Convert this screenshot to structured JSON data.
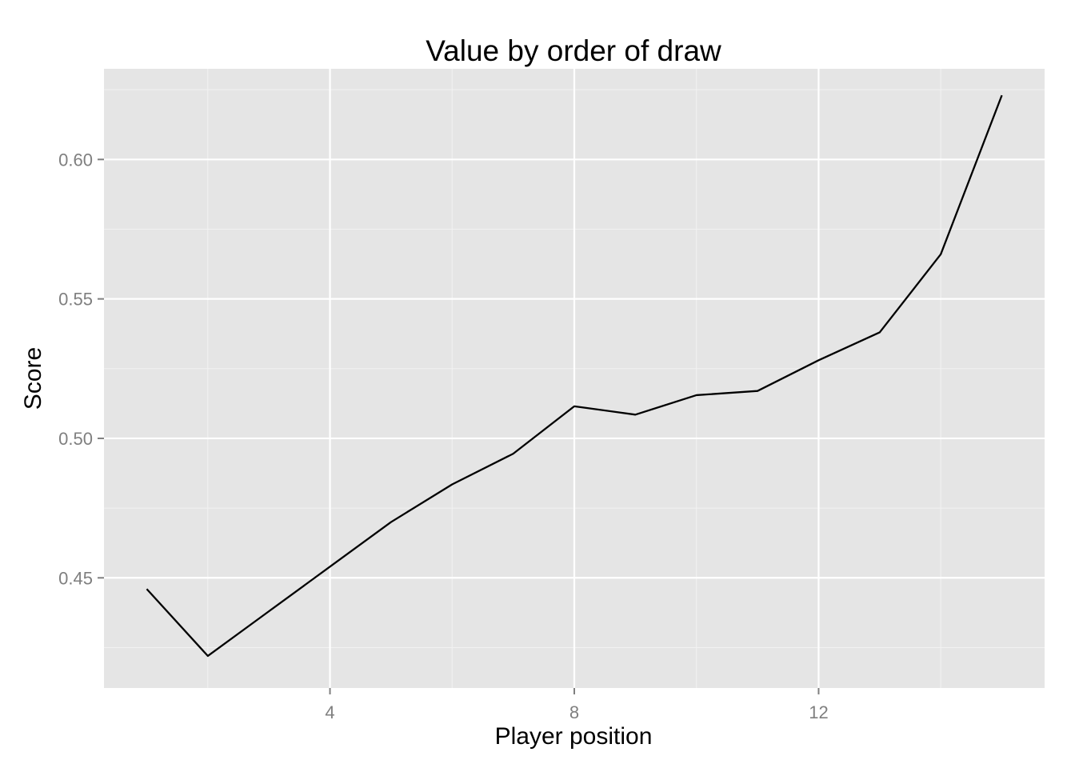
{
  "chart_data": {
    "type": "line",
    "title": "Value by order of draw",
    "xlabel": "Player position",
    "ylabel": "Score",
    "x": [
      1,
      2,
      3,
      4,
      5,
      6,
      7,
      8,
      9,
      10,
      11,
      12,
      13,
      14,
      15
    ],
    "series": [
      {
        "values": [
          0.446,
          0.422,
          0.438,
          0.454,
          0.47,
          0.4835,
          0.4945,
          0.5115,
          0.5085,
          0.5155,
          0.517,
          0.528,
          0.538,
          0.566,
          0.623
        ]
      }
    ],
    "xlim": [
      0.3,
      15.7
    ],
    "ylim": [
      0.4105,
      0.6325
    ],
    "x_ticks": [
      4,
      8,
      12
    ],
    "x_tick_labels": [
      "4",
      "8",
      "12"
    ],
    "y_ticks": [
      0.45,
      0.5,
      0.55,
      0.6
    ],
    "y_tick_labels": [
      "0.45",
      "0.50",
      "0.55",
      "0.60"
    ],
    "x_minor_ticks": [
      2,
      6,
      10,
      14
    ],
    "y_minor_ticks": [
      0.425,
      0.475,
      0.525,
      0.575,
      0.625
    ],
    "grid": true,
    "colors": {
      "panel_background": "#e5e5e5",
      "grid_major": "#ffffff",
      "grid_minor": "#f2f2f2",
      "line": "#000000",
      "tick_text": "#7f7f7f",
      "tick_mark": "#7f7f7f"
    }
  }
}
